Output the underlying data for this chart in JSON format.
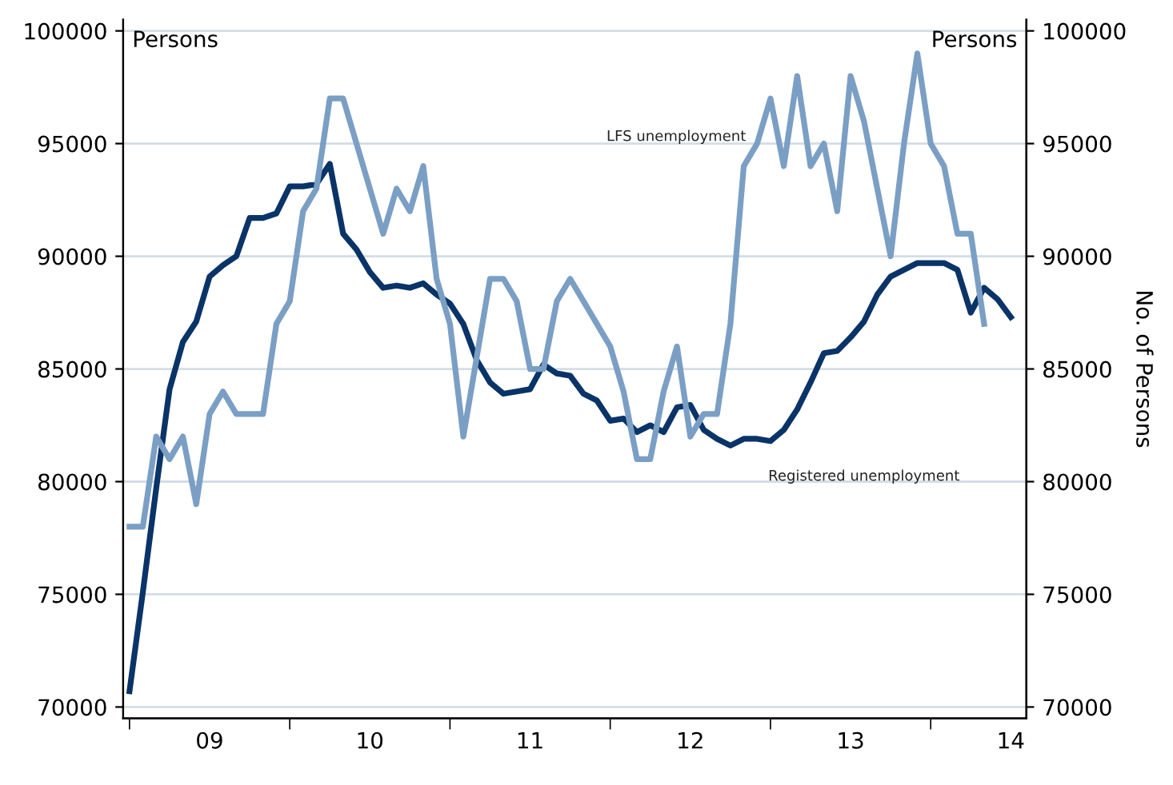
{
  "chart_data": {
    "type": "line",
    "x": [
      "2009-01",
      "2009-02",
      "2009-03",
      "2009-04",
      "2009-05",
      "2009-06",
      "2009-07",
      "2009-08",
      "2009-09",
      "2009-10",
      "2009-11",
      "2009-12",
      "2010-01",
      "2010-02",
      "2010-03",
      "2010-04",
      "2010-05",
      "2010-06",
      "2010-07",
      "2010-08",
      "2010-09",
      "2010-10",
      "2010-11",
      "2010-12",
      "2011-01",
      "2011-02",
      "2011-03",
      "2011-04",
      "2011-05",
      "2011-06",
      "2011-07",
      "2011-08",
      "2011-09",
      "2011-10",
      "2011-11",
      "2011-12",
      "2012-01",
      "2012-02",
      "2012-03",
      "2012-04",
      "2012-05",
      "2012-06",
      "2012-07",
      "2012-08",
      "2012-09",
      "2012-10",
      "2012-11",
      "2012-12",
      "2013-01",
      "2013-02",
      "2013-03",
      "2013-04",
      "2013-05",
      "2013-06",
      "2013-07",
      "2013-08",
      "2013-09",
      "2013-10",
      "2013-11",
      "2013-12",
      "2014-01",
      "2014-02",
      "2014-03",
      "2014-04",
      "2014-05",
      "2014-06",
      "2014-07"
    ],
    "series": [
      {
        "name": "Registered unemployment",
        "color": "#0a3468",
        "values": [
          70700,
          75100,
          79700,
          84100,
          86200,
          87100,
          89100,
          89600,
          90000,
          91700,
          91700,
          91900,
          93100,
          93100,
          93200,
          94100,
          91000,
          90300,
          89300,
          88600,
          88700,
          88600,
          88800,
          88300,
          87900,
          87000,
          85400,
          84400,
          83900,
          84000,
          84100,
          85200,
          84800,
          84700,
          83900,
          83600,
          82700,
          82800,
          82200,
          82500,
          82200,
          83300,
          83400,
          82300,
          81900,
          81600,
          81900,
          81900,
          81800,
          82300,
          83200,
          84400,
          85700,
          85800,
          86400,
          87100,
          88300,
          89100,
          89400,
          89700,
          89700,
          89700,
          89400,
          87500,
          88600,
          88100,
          87300
        ]
      },
      {
        "name": "LFS unemployment",
        "color": "#7b9fc4",
        "values": [
          78000,
          78000,
          82000,
          81000,
          82000,
          79000,
          83000,
          84000,
          83000,
          83000,
          83000,
          87000,
          88000,
          92000,
          93000,
          97000,
          97000,
          95000,
          93000,
          91000,
          93000,
          92000,
          94000,
          89000,
          87000,
          82000,
          85500,
          89000,
          89000,
          88000,
          85000,
          85000,
          88000,
          89000,
          88000,
          87000,
          86000,
          84000,
          81000,
          81000,
          84000,
          86000,
          82000,
          83000,
          83000,
          87000,
          94000,
          95000,
          97000,
          94000,
          98000,
          94000,
          95000,
          92000,
          98000,
          96000,
          93000,
          90000,
          95000,
          99000,
          95000,
          94000,
          91000,
          91000,
          87000,
          null,
          null
        ]
      }
    ],
    "ylabel": "Persons",
    "y2label": "No. of Persons",
    "ylim": [
      69500,
      100500
    ],
    "yticks": [
      70000,
      75000,
      80000,
      85000,
      90000,
      95000,
      100000
    ],
    "y2lim": [
      69500,
      100500
    ],
    "y2ticks": [
      70000,
      75000,
      80000,
      85000,
      90000,
      95000,
      100000
    ],
    "xlim": [
      "2008-12-17",
      "2014-08-06"
    ],
    "xticks": [
      {
        "value": "2009-01-01",
        "label": null
      },
      {
        "value": "2009-07-01",
        "label": "09"
      },
      {
        "value": "2010-01-01",
        "label": null
      },
      {
        "value": "2010-07-01",
        "label": "10"
      },
      {
        "value": "2011-01-01",
        "label": null
      },
      {
        "value": "2011-07-01",
        "label": "11"
      },
      {
        "value": "2012-01-01",
        "label": null
      },
      {
        "value": "2012-07-01",
        "label": "12"
      },
      {
        "value": "2013-01-01",
        "label": null
      },
      {
        "value": "2013-07-01",
        "label": "13"
      },
      {
        "value": "2014-01-01",
        "label": null
      },
      {
        "value": "2014-07-01",
        "label": "14"
      }
    ],
    "grid": "y",
    "legend": false,
    "line_style": "solid",
    "marker": "none"
  }
}
